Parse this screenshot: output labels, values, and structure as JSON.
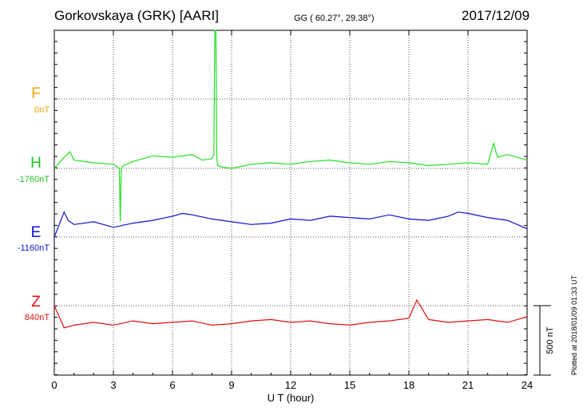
{
  "header": {
    "station": "Gorkovskaya (GRK)  [AARI]",
    "coords": "GG ( 60.27°,  29.38°)",
    "date": "2017/12/09"
  },
  "footer": {
    "plotted": "Plotted at 2018/01/09 01:33 UT"
  },
  "chart_data": {
    "type": "line",
    "xlabel": "U T (hour)",
    "xlim": [
      0,
      24
    ],
    "xticks": [
      0,
      3,
      6,
      9,
      12,
      15,
      18,
      21,
      24
    ],
    "xtick_labels": [
      "0",
      "3",
      "6",
      "9",
      "12",
      "15",
      "18",
      "21",
      "24"
    ],
    "scale_bar_label": "500 nT",
    "scale_bar_nT": 500,
    "grid": true,
    "series": [
      {
        "name": "F",
        "baseline_label": "0nT",
        "color": "#f5a300",
        "x": [],
        "y": []
      },
      {
        "name": "H",
        "baseline_label": "-1760nT",
        "color": "#22e022",
        "x": [
          0,
          0.5,
          0.8,
          1,
          2,
          3,
          3.3,
          3.35,
          3.4,
          3.5,
          4,
          5,
          6,
          7,
          7.5,
          8,
          8.1,
          8.15,
          8.2,
          8.25,
          8.3,
          8.5,
          9,
          10,
          11,
          12,
          13,
          14,
          15,
          16,
          17,
          18,
          19,
          20,
          21,
          22,
          22.3,
          22.5,
          23,
          24
        ],
        "y": [
          0,
          80,
          120,
          60,
          40,
          30,
          0,
          -380,
          0,
          20,
          50,
          90,
          80,
          100,
          60,
          70,
          100,
          1800,
          1300,
          80,
          20,
          10,
          0,
          30,
          40,
          30,
          50,
          60,
          40,
          30,
          50,
          40,
          20,
          30,
          40,
          30,
          180,
          80,
          100,
          60
        ]
      },
      {
        "name": "E",
        "baseline_label": "-1160nT",
        "color": "#1010d0",
        "x": [
          0,
          0.5,
          0.7,
          1,
          2,
          3,
          4,
          5,
          6,
          6.5,
          7,
          8,
          9,
          10,
          11,
          12,
          13,
          14,
          15,
          16,
          17,
          18,
          19,
          20,
          20.5,
          21,
          22,
          23,
          24
        ],
        "y": [
          0,
          180,
          120,
          90,
          110,
          70,
          100,
          120,
          150,
          170,
          160,
          130,
          110,
          90,
          100,
          130,
          120,
          150,
          140,
          130,
          160,
          130,
          120,
          150,
          180,
          170,
          140,
          120,
          60
        ]
      },
      {
        "name": "Z",
        "baseline_label": "840nT",
        "color": "#e01010",
        "x": [
          0,
          0.5,
          1,
          2,
          3,
          4,
          5,
          6,
          7,
          8,
          9,
          10,
          11,
          12,
          13,
          14,
          15,
          16,
          17,
          18,
          18.4,
          19,
          20,
          21,
          22,
          23,
          24
        ],
        "y": [
          0,
          -160,
          -140,
          -120,
          -140,
          -110,
          -130,
          -120,
          -110,
          -140,
          -130,
          -110,
          -100,
          -120,
          -110,
          -130,
          -140,
          -120,
          -110,
          -90,
          40,
          -100,
          -120,
          -110,
          -100,
          -120,
          -80
        ]
      }
    ]
  }
}
